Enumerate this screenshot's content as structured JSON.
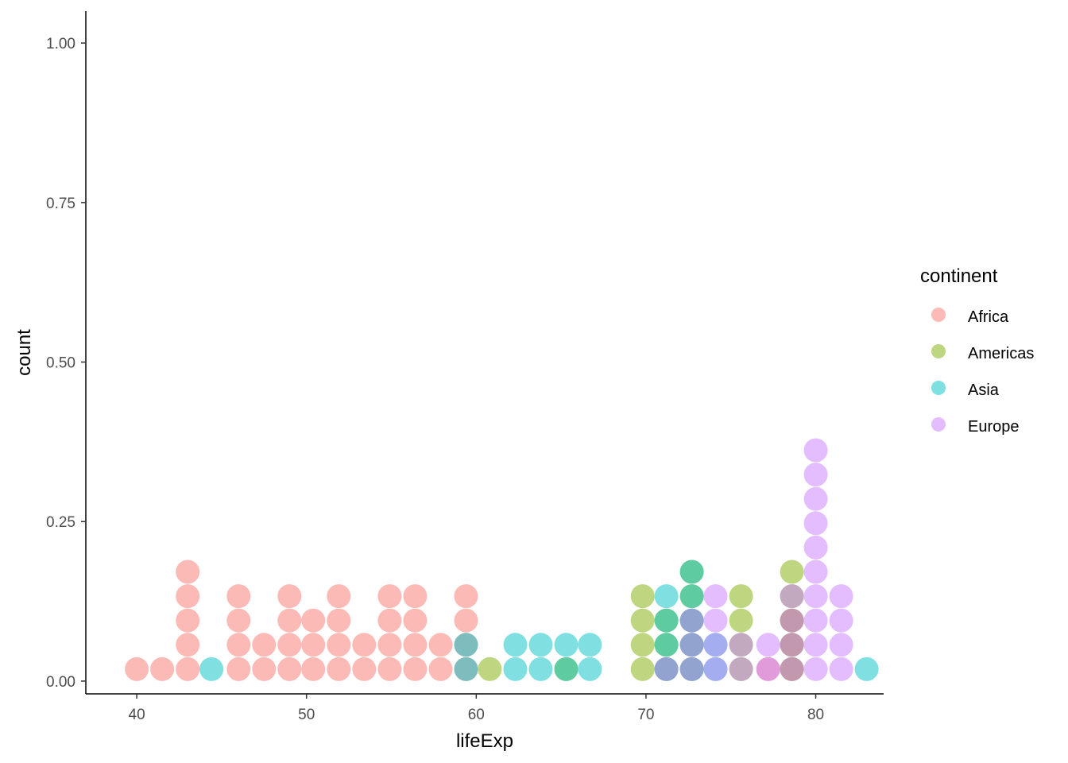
{
  "chart_data": {
    "type": "dotplot",
    "xlabel": "lifeExp",
    "ylabel": "count",
    "xlim": [
      37,
      84
    ],
    "ylim": [
      -0.02,
      1.05
    ],
    "x_ticks": [
      "40",
      "50",
      "60",
      "70",
      "80"
    ],
    "y_ticks": [
      "0.00",
      "0.25",
      "0.50",
      "0.75",
      "1.00"
    ],
    "grid": false,
    "legend_title": "continent",
    "legend_position": "right",
    "dot_alpha": 0.5,
    "series": [
      {
        "name": "Africa",
        "color": "#F8766D",
        "stacks": [
          {
            "x": 40.0,
            "count": 1
          },
          {
            "x": 41.5,
            "count": 1
          },
          {
            "x": 43.0,
            "count": 5
          },
          {
            "x": 46.0,
            "count": 4
          },
          {
            "x": 47.5,
            "count": 2
          },
          {
            "x": 49.0,
            "count": 4
          },
          {
            "x": 50.4,
            "count": 3
          },
          {
            "x": 51.9,
            "count": 4
          },
          {
            "x": 53.4,
            "count": 2
          },
          {
            "x": 54.9,
            "count": 4
          },
          {
            "x": 56.4,
            "count": 4
          },
          {
            "x": 57.9,
            "count": 2
          },
          {
            "x": 59.4,
            "count": 4
          },
          {
            "x": 77.2,
            "count": 1
          },
          {
            "x": 78.6,
            "count": 3
          }
        ]
      },
      {
        "name": "Americas",
        "color": "#7CAE00",
        "stacks": [
          {
            "x": 60.8,
            "count": 1
          },
          {
            "x": 65.3,
            "count": 1
          },
          {
            "x": 69.8,
            "count": 4
          },
          {
            "x": 71.2,
            "count": 3
          },
          {
            "x": 72.7,
            "count": 5
          },
          {
            "x": 75.6,
            "count": 4
          },
          {
            "x": 78.6,
            "count": 5
          }
        ]
      },
      {
        "name": "Asia",
        "color": "#00BFC4",
        "stacks": [
          {
            "x": 44.4,
            "count": 1
          },
          {
            "x": 59.4,
            "count": 2
          },
          {
            "x": 62.3,
            "count": 2
          },
          {
            "x": 63.8,
            "count": 2
          },
          {
            "x": 65.3,
            "count": 2
          },
          {
            "x": 66.7,
            "count": 2
          },
          {
            "x": 71.2,
            "count": 4
          },
          {
            "x": 72.7,
            "count": 5
          },
          {
            "x": 74.1,
            "count": 2
          },
          {
            "x": 83.0,
            "count": 1
          }
        ]
      },
      {
        "name": "Europe",
        "color": "#C77CFF",
        "stacks": [
          {
            "x": 71.2,
            "count": 1
          },
          {
            "x": 72.7,
            "count": 3
          },
          {
            "x": 74.1,
            "count": 4
          },
          {
            "x": 75.6,
            "count": 2
          },
          {
            "x": 77.2,
            "count": 2
          },
          {
            "x": 78.6,
            "count": 4
          },
          {
            "x": 80.0,
            "count": 10
          },
          {
            "x": 81.5,
            "count": 4
          }
        ]
      }
    ]
  }
}
